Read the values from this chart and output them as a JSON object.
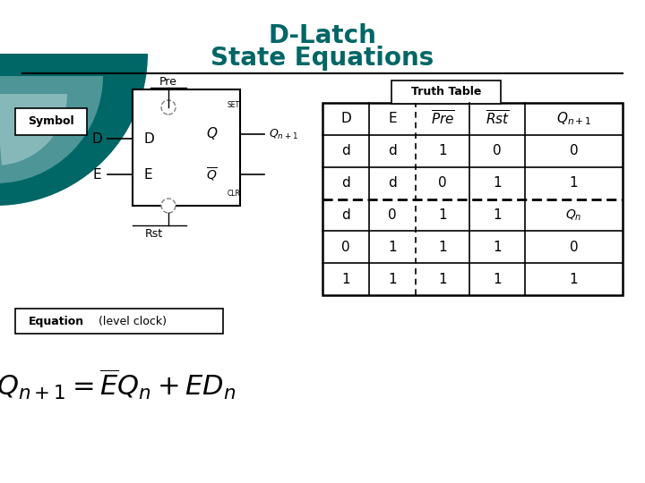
{
  "title_line1": "D-Latch",
  "title_line2": "State Equations",
  "title_color": "#006666",
  "bg_color": "#ffffff",
  "truth_table": {
    "rows": [
      [
        "d",
        "d",
        "1",
        "0",
        "0"
      ],
      [
        "d",
        "d",
        "0",
        "1",
        "1"
      ],
      [
        "d",
        "0",
        "1",
        "1",
        "Q_n"
      ],
      [
        "0",
        "1",
        "1",
        "1",
        "0"
      ],
      [
        "1",
        "1",
        "1",
        "1",
        "1"
      ]
    ]
  },
  "circle_colors": [
    "#006666",
    "#5b9ea0",
    "#a0c8c8"
  ],
  "symbol_label": "Symbol",
  "pre_label": "Pre",
  "rst_label": "Rst",
  "truth_table_label": "Truth Table",
  "equation_label": "Equation",
  "level_clock_label": "(level clock)"
}
